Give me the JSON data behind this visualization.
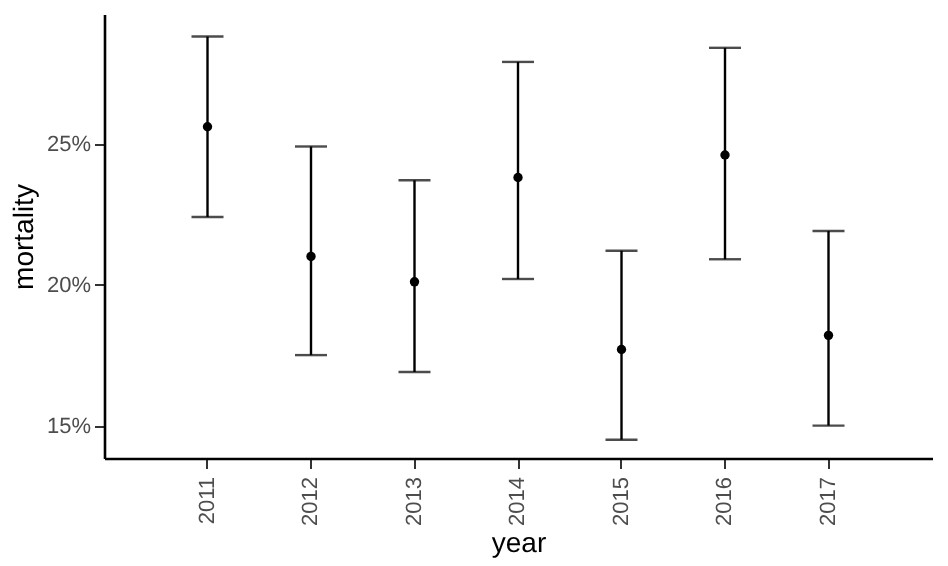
{
  "chart_data": {
    "type": "scatter",
    "xlabel": "year",
    "ylabel": "mortality",
    "categories": [
      "2011",
      "2012",
      "2013",
      "2014",
      "2015",
      "2016",
      "2017"
    ],
    "series": [
      {
        "color": "#000000",
        "values": [
          25.6,
          21.0,
          20.1,
          23.8,
          17.7,
          24.6,
          18.2
        ],
        "errors": [
          [
            22.4,
            28.8
          ],
          [
            17.5,
            24.9
          ],
          [
            16.9,
            23.7
          ],
          [
            20.2,
            27.9
          ],
          [
            14.5,
            21.2
          ],
          [
            20.9,
            28.4
          ],
          [
            15.0,
            21.9
          ]
        ]
      }
    ],
    "ylim": [
      13.85,
      29.6
    ],
    "yticks": [
      {
        "value": 15,
        "label": "15%"
      },
      {
        "value": 20,
        "label": "20%"
      },
      {
        "value": 25,
        "label": "25%"
      }
    ],
    "marker": "circle",
    "grid": false,
    "legend": false
  }
}
